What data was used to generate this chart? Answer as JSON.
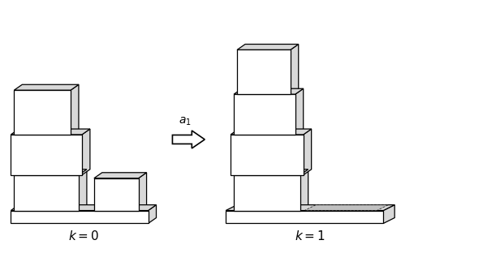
{
  "bg_color": "#ffffff",
  "line_color": "#000000",
  "face_color_white": "#ffffff",
  "face_color_light": "#d8d8d8",
  "face_color_gray": "#b8b8b8",
  "ddx": 10,
  "ddy": 7
}
